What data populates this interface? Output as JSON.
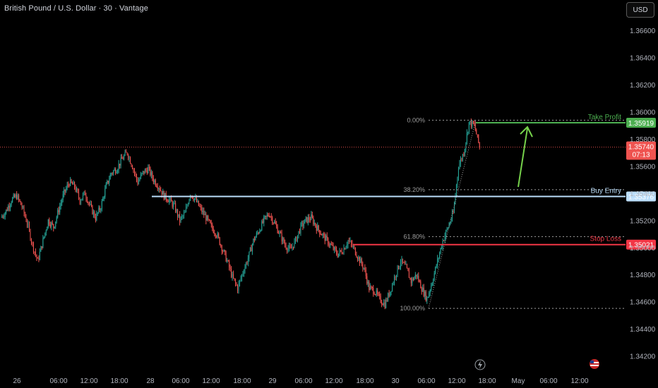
{
  "header": {
    "title": "British Pound / U.S. Dollar · 30 · Vantage",
    "currency": "USD"
  },
  "colors": {
    "up": "#26a69a",
    "down": "#ef5350",
    "take_profit": "#4caf50",
    "buy_entry": "#bbdefb",
    "stop_loss": "#f23645",
    "fib": "#9e9e9e",
    "arrow": "#76d24b"
  },
  "chart_data": {
    "type": "candlestick",
    "symbol": "GBPUSD",
    "timeframe": "30",
    "ylim": [
      1.3412,
      1.3672
    ],
    "y_ticks": [
      "1.36600",
      "1.36400",
      "1.36200",
      "1.36000",
      "1.35800",
      "1.35600",
      "1.35400",
      "1.35200",
      "1.35000",
      "1.34800",
      "1.34600",
      "1.34400",
      "1.34200"
    ],
    "x_ticks": [
      "26",
      "06:00",
      "12:00",
      "18:00",
      "28",
      "06:00",
      "12:00",
      "18:00",
      "29",
      "06:00",
      "12:00",
      "18:00",
      "30",
      "06:00",
      "12:00",
      "18:00",
      "May",
      "06:00",
      "12:00"
    ],
    "levels": {
      "take_profit": {
        "label": "Take Profit",
        "value": "1.35919"
      },
      "buy_entry": {
        "label": "Buy Entry",
        "value": "1.35376"
      },
      "stop_loss": {
        "label": "Stop Loss",
        "value": "1.35021"
      },
      "current_price": {
        "value": "1.35740",
        "countdown": "07:13"
      }
    },
    "fibonacci": [
      {
        "label": "0.00%",
        "value": 1.35938
      },
      {
        "label": "38.20%",
        "value": 1.35426
      },
      {
        "label": "61.80%",
        "value": 1.3508
      },
      {
        "label": "100.00%",
        "value": 1.34551
      }
    ],
    "close_path": [
      1.3522,
      1.3527,
      1.3535,
      1.3538,
      1.353,
      1.3518,
      1.3502,
      1.349,
      1.3505,
      1.352,
      1.3515,
      1.3528,
      1.354,
      1.3548,
      1.3545,
      1.3535,
      1.354,
      1.353,
      1.3522,
      1.353,
      1.3545,
      1.3555,
      1.3558,
      1.3565,
      1.357,
      1.356,
      1.3548,
      1.3555,
      1.3558,
      1.355,
      1.3545,
      1.3538,
      1.3535,
      1.353,
      1.352,
      1.3525,
      1.354,
      1.3535,
      1.3528,
      1.3522,
      1.3515,
      1.351,
      1.35,
      1.349,
      1.3478,
      1.347,
      1.3482,
      1.3492,
      1.3505,
      1.3512,
      1.352,
      1.3525,
      1.3518,
      1.351,
      1.3502,
      1.3498,
      1.3505,
      1.3515,
      1.352,
      1.3522,
      1.3515,
      1.351,
      1.3505,
      1.35,
      1.3495,
      1.3498,
      1.3505,
      1.35,
      1.3492,
      1.3485,
      1.347,
      1.3468,
      1.3462,
      1.3458,
      1.3468,
      1.348,
      1.349,
      1.3485,
      1.3475,
      1.348,
      1.347,
      1.3462,
      1.3475,
      1.349,
      1.3505,
      1.3515,
      1.3525,
      1.356,
      1.357,
      1.3592,
      1.359,
      1.3574
    ]
  }
}
